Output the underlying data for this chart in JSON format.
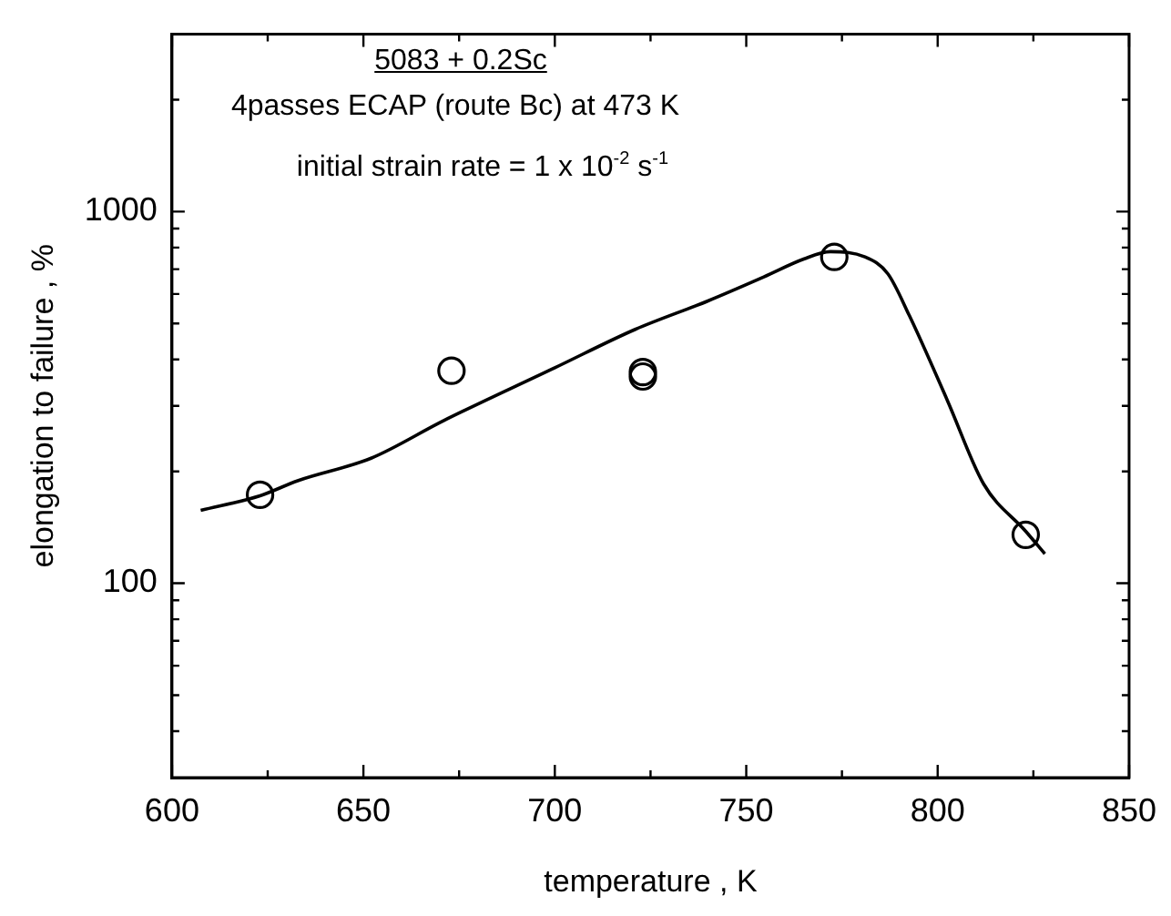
{
  "chart_data": {
    "type": "scatter",
    "xlabel": "temperature , K",
    "ylabel": "elongation to failure , %",
    "annotations": [
      "5083 + 0.2Sc",
      "4passes ECAP (route Bc) at 473 K",
      "initial strain rate = 1 x 10$^{-2}$ s$^{-1}$"
    ],
    "log": "y",
    "grid": false,
    "legend": false,
    "xlim": [
      600,
      850
    ],
    "xticks": [
      600,
      {
        "value": 625,
        "label": null
      },
      650,
      {
        "value": 675,
        "label": null
      },
      700,
      {
        "value": 725,
        "label": null
      },
      750,
      {
        "value": 775,
        "label": null
      },
      800,
      {
        "value": 825,
        "label": null
      },
      850
    ],
    "ylim": [
      30,
      3000
    ],
    "yticks": [
      {
        "value": 40,
        "label": null
      },
      {
        "value": 50,
        "label": null
      },
      {
        "value": 60,
        "label": null
      },
      {
        "value": 70,
        "label": null
      },
      {
        "value": 80,
        "label": null
      },
      {
        "value": 90,
        "label": null
      },
      100,
      {
        "value": 200,
        "label": null
      },
      {
        "value": 300,
        "label": null
      },
      {
        "value": 400,
        "label": null
      },
      {
        "value": 500,
        "label": null
      },
      {
        "value": 600,
        "label": null
      },
      {
        "value": 700,
        "label": null
      },
      {
        "value": 800,
        "label": null
      },
      {
        "value": 900,
        "label": null
      },
      1000,
      {
        "value": 2000,
        "label": null
      }
    ],
    "series": [
      {
        "type": "scatter",
        "marker": "circle",
        "color": "#000000",
        "x": [
          623,
          673,
          723,
          723,
          773,
          823
        ],
        "values": [
          173,
          373,
          370,
          360,
          755,
          135
        ]
      },
      {
        "type": "line",
        "marker": "none",
        "line_style": "solid",
        "color": "#000000",
        "x": [
          607.5,
          623,
          633,
          652,
          671,
          700,
          721,
          740,
          754.6,
          765,
          772,
          781,
          787,
          792.6,
          802.5,
          812,
          823,
          828
        ],
        "values": [
          157,
          172,
          189,
          217,
          274,
          380,
          482,
          575,
          667,
          745,
          780,
          755,
          680,
          525,
          311,
          185,
          138,
          120
        ]
      }
    ]
  }
}
